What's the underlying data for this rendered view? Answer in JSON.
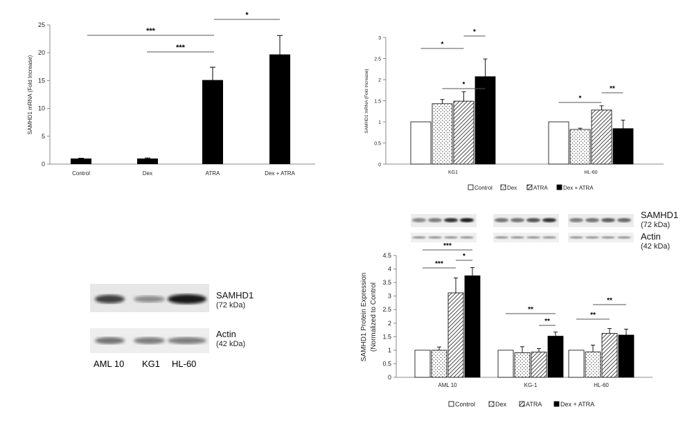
{
  "chart_data": [
    {
      "id": "A",
      "type": "bar",
      "ylabel": "SAMHD1 mRNA (Fold Increase)",
      "ylim": [
        0,
        25
      ],
      "yticks": [
        0,
        5,
        10,
        15,
        20,
        25
      ],
      "categories": [
        "Control",
        "Dex",
        "ATRA",
        "Dex + ATRA"
      ],
      "values": [
        1.0,
        1.0,
        15.1,
        19.7
      ],
      "errors": [
        0.05,
        0.1,
        2.3,
        3.4
      ],
      "fill": "solid-black",
      "significance": [
        {
          "from": 0,
          "to": 2,
          "label": "***"
        },
        {
          "from": 1,
          "to": 2,
          "label": "***"
        },
        {
          "from": 2,
          "to": 3,
          "label": "*"
        }
      ]
    },
    {
      "id": "B",
      "type": "bar",
      "ylabel": "SAMHD1 mRNA (Fold Increase)",
      "ylim": [
        0,
        3
      ],
      "yticks": [
        0,
        0.5,
        1,
        1.5,
        2,
        2.5,
        3
      ],
      "categories": [
        "KG1",
        "HL-60"
      ],
      "series": [
        {
          "name": "Control",
          "pattern": "white",
          "values": [
            1.0,
            1.0
          ],
          "errors": [
            0,
            0
          ]
        },
        {
          "name": "Dex",
          "pattern": "dots",
          "values": [
            1.43,
            0.82
          ],
          "errors": [
            0.1,
            0.03
          ]
        },
        {
          "name": "ATRA",
          "pattern": "hatch",
          "values": [
            1.49,
            1.28
          ],
          "errors": [
            0.22,
            0.1
          ]
        },
        {
          "name": "Dex + ATRA",
          "pattern": "black",
          "values": [
            2.07,
            0.84
          ],
          "errors": [
            0.42,
            0.2
          ]
        }
      ],
      "significance": [
        {
          "group": 0,
          "from": 0,
          "to": 2,
          "label": "*"
        },
        {
          "group": 0,
          "from": 1,
          "to": 3,
          "label": "*"
        },
        {
          "group": 0,
          "from": 2,
          "to": 3,
          "label": "*"
        },
        {
          "group": 1,
          "from": 0,
          "to": 2,
          "label": "*"
        },
        {
          "group": 1,
          "from": 2,
          "to": 3,
          "label": "**"
        }
      ],
      "legend": "bottom"
    },
    {
      "id": "D",
      "type": "bar",
      "ylabel_lines": [
        "SAMHD1 Protein Expression",
        "(Normalized to Control"
      ],
      "ylim": [
        0,
        4.5
      ],
      "yticks": [
        0,
        0.5,
        1,
        1.5,
        2,
        2.5,
        3,
        3.5,
        4,
        4.5
      ],
      "categories": [
        "AML 10",
        "KG-1",
        "HL-60"
      ],
      "series": [
        {
          "name": "Control",
          "pattern": "white",
          "values": [
            1.0,
            1.0,
            1.0
          ],
          "errors": [
            0,
            0,
            0
          ]
        },
        {
          "name": "Dex",
          "pattern": "dots",
          "values": [
            1.0,
            0.91,
            0.94
          ],
          "errors": [
            0.12,
            0.22,
            0.25
          ]
        },
        {
          "name": "ATRA",
          "pattern": "hatch",
          "values": [
            3.12,
            0.93,
            1.62
          ],
          "errors": [
            0.55,
            0.13,
            0.18
          ]
        },
        {
          "name": "Dex + ATRA",
          "pattern": "black",
          "values": [
            3.75,
            1.52,
            1.56
          ],
          "errors": [
            0.3,
            0.15,
            0.22
          ]
        }
      ],
      "significance": [
        {
          "group": 0,
          "from": 0,
          "to": 3,
          "label": "***"
        },
        {
          "group": 0,
          "from": 0,
          "to": 2,
          "label": "***"
        },
        {
          "group": 0,
          "from": 2,
          "to": 3,
          "label": "*"
        },
        {
          "group": 1,
          "from": 0,
          "to": 3,
          "label": "**"
        },
        {
          "group": 1,
          "from": 2,
          "to": 3,
          "label": "**"
        },
        {
          "group": 2,
          "from": 0,
          "to": 2,
          "label": "**"
        },
        {
          "group": 2,
          "from": 1,
          "to": 3,
          "label": "**"
        }
      ],
      "legend": "bottom"
    }
  ],
  "blot_c": {
    "samhd1": "SAMHD1",
    "samhd1_kda": "(72 kDa)",
    "actin": "Actin",
    "actin_kda": "(42 kDa)",
    "lanes": [
      "AML 10",
      "KG1",
      "HL-60"
    ],
    "samhd1_intensity": [
      0.75,
      0.25,
      1.0
    ],
    "actin_intensity": [
      0.6,
      0.55,
      0.55
    ]
  },
  "blot_d": {
    "samhd1": "SAMHD1",
    "samhd1_kda": "(72 kDa)",
    "actin": "Actin",
    "actin_kda": "(42 kDa)"
  },
  "legend_items": [
    "Control",
    "Dex",
    "ATRA",
    "Dex + ATRA"
  ]
}
